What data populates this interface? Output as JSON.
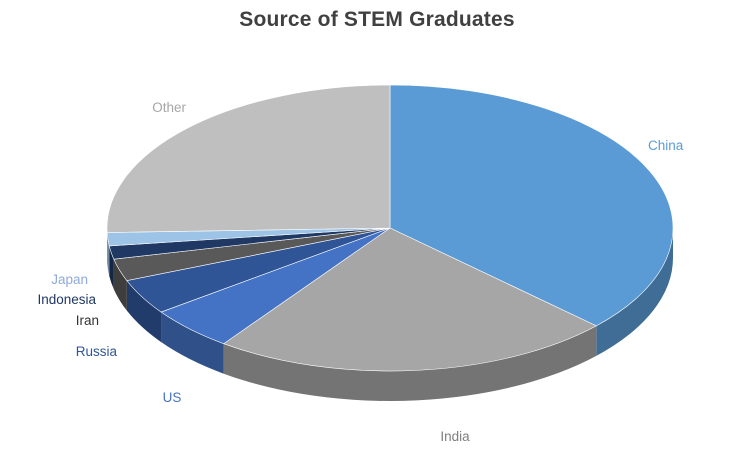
{
  "chart_data": {
    "type": "pie",
    "effect": "3d",
    "title": "Source of STEM Graduates",
    "title_color": "#404040",
    "background_color": "#FFFFFF",
    "legend_position": "none",
    "labels_position": "outside",
    "slices": [
      {
        "label": "China",
        "value": 37.0,
        "color": "#5B9BD5",
        "label_color": "#5B9BD5"
      },
      {
        "label": "India",
        "value": 23.0,
        "color": "#A6A6A6",
        "label_color": "#7F7F7F"
      },
      {
        "label": "US",
        "value": 5.0,
        "color": "#4472C4",
        "label_color": "#4472C4"
      },
      {
        "label": "Russia",
        "value": 4.0,
        "color": "#2F5597",
        "label_color": "#2F5597"
      },
      {
        "label": "Iran",
        "value": 2.5,
        "color": "#595959",
        "label_color": "#333333"
      },
      {
        "label": "Indonesia",
        "value": 1.5,
        "color": "#1F3864",
        "label_color": "#1F3864"
      },
      {
        "label": "Japan",
        "value": 1.5,
        "color": "#9DC3E6",
        "label_color": "#8EAADB"
      },
      {
        "label": "Other",
        "value": 25.5,
        "color": "#BFBFBF",
        "label_color": "#A6A6A6"
      }
    ]
  }
}
